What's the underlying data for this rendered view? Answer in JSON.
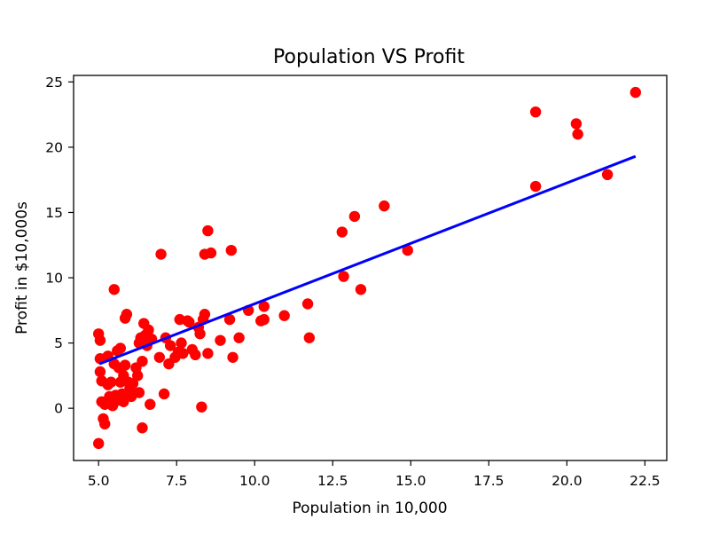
{
  "chart_data": {
    "type": "scatter",
    "title": "Population VS Profit",
    "xlabel": "Population in 10,000",
    "ylabel": "Profit in $10,000s",
    "xlim": [
      4.2,
      23.2
    ],
    "ylim": [
      -4.0,
      25.5
    ],
    "xticks": [
      5.0,
      7.5,
      10.0,
      12.5,
      15.0,
      17.5,
      20.0,
      22.5
    ],
    "xtick_labels": [
      "5.0",
      "7.5",
      "10.0",
      "12.5",
      "15.0",
      "17.5",
      "20.0",
      "22.5"
    ],
    "yticks": [
      0,
      5,
      10,
      15,
      20,
      25
    ],
    "ytick_labels": [
      "0",
      "5",
      "10",
      "15",
      "20",
      "25"
    ],
    "grid": false,
    "series": [
      {
        "kind": "scatter",
        "color": "#ff0000",
        "points": [
          [
            5.0,
            -2.7
          ],
          [
            5.0,
            5.7
          ],
          [
            5.05,
            5.2
          ],
          [
            5.05,
            3.8
          ],
          [
            5.05,
            2.8
          ],
          [
            5.1,
            2.1
          ],
          [
            5.1,
            0.5
          ],
          [
            5.15,
            -0.8
          ],
          [
            5.2,
            -1.2
          ],
          [
            5.2,
            0.3
          ],
          [
            5.3,
            1.8
          ],
          [
            5.3,
            4.0
          ],
          [
            5.35,
            0.9
          ],
          [
            5.4,
            2.0
          ],
          [
            5.45,
            0.2
          ],
          [
            5.5,
            9.1
          ],
          [
            5.5,
            3.4
          ],
          [
            5.55,
            1.0
          ],
          [
            5.6,
            4.4
          ],
          [
            5.6,
            0.6
          ],
          [
            5.65,
            3.1
          ],
          [
            5.7,
            4.6
          ],
          [
            5.7,
            2.0
          ],
          [
            5.75,
            1.1
          ],
          [
            5.8,
            2.5
          ],
          [
            5.8,
            0.5
          ],
          [
            5.85,
            6.9
          ],
          [
            5.85,
            3.3
          ],
          [
            5.9,
            7.2
          ],
          [
            5.95,
            2.0
          ],
          [
            6.0,
            1.5
          ],
          [
            6.05,
            0.9
          ],
          [
            6.1,
            1.9
          ],
          [
            6.2,
            3.1
          ],
          [
            6.25,
            2.5
          ],
          [
            6.3,
            1.2
          ],
          [
            6.3,
            5.0
          ],
          [
            6.35,
            5.4
          ],
          [
            6.4,
            -1.5
          ],
          [
            6.4,
            3.6
          ],
          [
            6.45,
            6.5
          ],
          [
            6.5,
            5.6
          ],
          [
            6.55,
            4.8
          ],
          [
            6.6,
            6.0
          ],
          [
            6.65,
            0.3
          ],
          [
            6.7,
            5.3
          ],
          [
            6.95,
            3.9
          ],
          [
            7.0,
            11.8
          ],
          [
            7.1,
            1.1
          ],
          [
            7.15,
            5.4
          ],
          [
            7.25,
            3.4
          ],
          [
            7.3,
            4.8
          ],
          [
            7.45,
            3.9
          ],
          [
            7.55,
            4.3
          ],
          [
            7.6,
            6.8
          ],
          [
            7.65,
            5.0
          ],
          [
            7.7,
            4.2
          ],
          [
            7.85,
            6.7
          ],
          [
            7.9,
            6.6
          ],
          [
            8.0,
            4.5
          ],
          [
            8.1,
            4.1
          ],
          [
            8.2,
            6.2
          ],
          [
            8.25,
            5.7
          ],
          [
            8.3,
            0.1
          ],
          [
            8.35,
            6.8
          ],
          [
            8.4,
            11.8
          ],
          [
            8.4,
            7.2
          ],
          [
            8.5,
            13.6
          ],
          [
            8.5,
            4.2
          ],
          [
            8.6,
            11.9
          ],
          [
            8.9,
            5.2
          ],
          [
            9.2,
            6.8
          ],
          [
            9.25,
            12.1
          ],
          [
            9.3,
            3.9
          ],
          [
            9.5,
            5.4
          ],
          [
            9.8,
            7.5
          ],
          [
            10.2,
            6.7
          ],
          [
            10.3,
            6.8
          ],
          [
            10.3,
            7.8
          ],
          [
            10.95,
            7.1
          ],
          [
            11.7,
            8.0
          ],
          [
            11.75,
            5.4
          ],
          [
            12.8,
            13.5
          ],
          [
            12.85,
            10.1
          ],
          [
            13.2,
            14.7
          ],
          [
            13.4,
            9.1
          ],
          [
            14.15,
            15.5
          ],
          [
            14.9,
            12.1
          ],
          [
            19.0,
            22.7
          ],
          [
            19.0,
            17.0
          ],
          [
            20.3,
            21.8
          ],
          [
            20.35,
            21.0
          ],
          [
            21.3,
            17.9
          ],
          [
            22.2,
            24.2
          ]
        ]
      },
      {
        "kind": "line",
        "color": "#0000ff",
        "x": [
          5.03,
          22.2
        ],
        "y": [
          3.4,
          19.3
        ]
      }
    ]
  }
}
